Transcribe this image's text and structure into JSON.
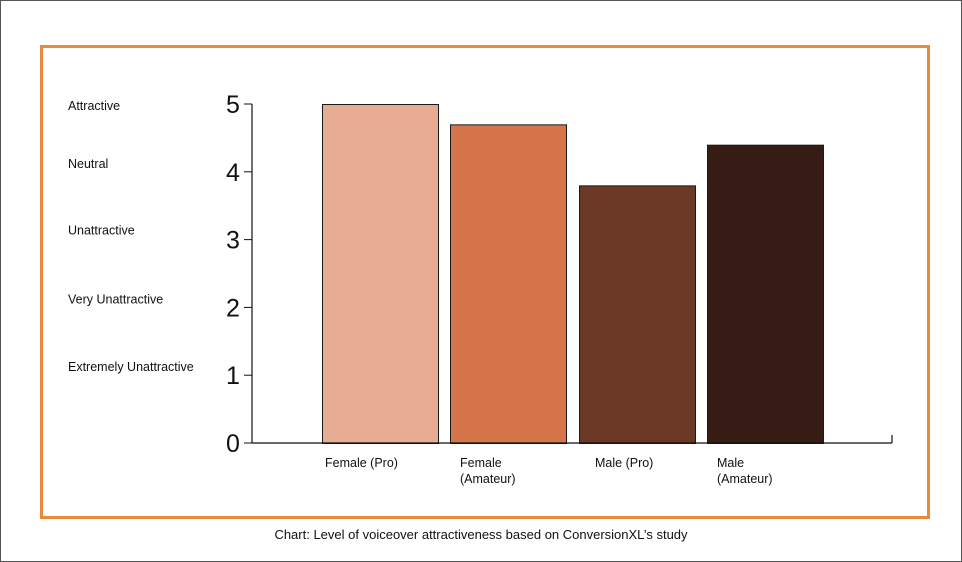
{
  "chart_data": {
    "type": "bar",
    "categories": [
      [
        "Female (Pro)"
      ],
      [
        "Female",
        "(Amateur)"
      ],
      [
        "Male (Pro)"
      ],
      [
        "Male",
        "(Amateur)"
      ]
    ],
    "values": [
      5.0,
      4.7,
      3.8,
      4.4
    ],
    "colors": [
      "#E7AC94",
      "#D6744A",
      "#6B3926",
      "#361C14"
    ],
    "ylim": [
      0,
      5
    ],
    "yticks": [
      0,
      1,
      2,
      3,
      4,
      5
    ],
    "rating_labels": [
      {
        "value": 5,
        "label": "Attractive"
      },
      {
        "value": 4,
        "label": "Neutral"
      },
      {
        "value": 3,
        "label": "Unattractive"
      },
      {
        "value": 2,
        "label": "Very Unattractive"
      },
      {
        "value": 1,
        "label": "Extremely Unattractive"
      }
    ],
    "title": "",
    "xlabel": "",
    "ylabel": "",
    "grid": false,
    "border_color": "#E98A3B"
  },
  "caption": "Chart: Level of voiceover attractiveness based on ConversionXL’s study"
}
